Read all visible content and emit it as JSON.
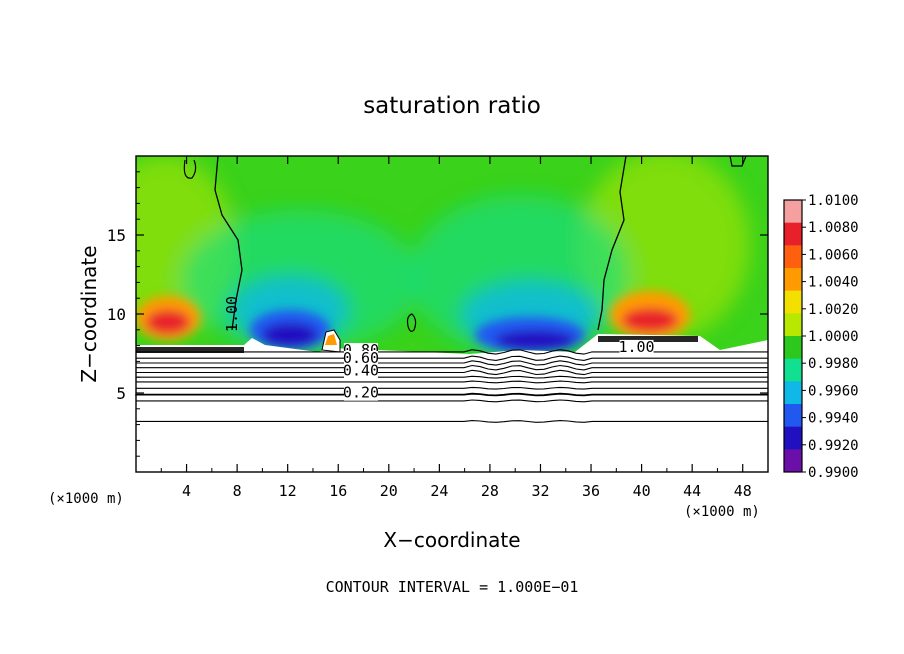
{
  "chart_data": {
    "type": "heatmap",
    "title": "saturation ratio",
    "xlabel": "X−coordinate",
    "ylabel": "Z−coordinate",
    "x_unit_left": "(×1000 m)",
    "x_unit_right": "(×1000 m)",
    "xlim": [
      0,
      50
    ],
    "ylim": [
      0,
      20
    ],
    "x_ticks": [
      4,
      8,
      12,
      16,
      20,
      24,
      28,
      32,
      36,
      40,
      44,
      48
    ],
    "y_ticks": [
      5,
      10,
      15
    ],
    "colorbar": {
      "ticks": [
        "1.0100",
        "1.0080",
        "1.0060",
        "1.0040",
        "1.0020",
        "1.0000",
        "0.9980",
        "0.9960",
        "0.9940",
        "0.9920",
        "0.9900"
      ],
      "colors": [
        "#f4a0a0",
        "#e8202a",
        "#ff6010",
        "#ff9a00",
        "#f4e000",
        "#b8e800",
        "#2cc81e",
        "#10e090",
        "#10b8e8",
        "#2058f0",
        "#2010c0",
        "#6a10a8"
      ]
    },
    "background_field": "#3ad21a",
    "contour_labels": [
      {
        "text": "1.00",
        "x": 8.0,
        "z": 10.0
      },
      {
        "text": "1.00",
        "x": 39.6,
        "z": 7.6
      },
      {
        "text": "0.80",
        "x": 17.8,
        "z": 7.4
      },
      {
        "text": "0.60",
        "x": 17.8,
        "z": 6.9
      },
      {
        "text": "0.40",
        "x": 17.8,
        "z": 6.1
      },
      {
        "text": "0.20",
        "x": 17.8,
        "z": 4.7
      }
    ],
    "contour_levels_below_cloud": [
      7.6,
      7.2,
      6.9,
      6.6,
      6.3,
      6.0,
      5.7,
      5.3,
      4.9,
      4.5,
      3.2
    ],
    "footer": "CONTOUR INTERVAL = 1.000E−01"
  }
}
